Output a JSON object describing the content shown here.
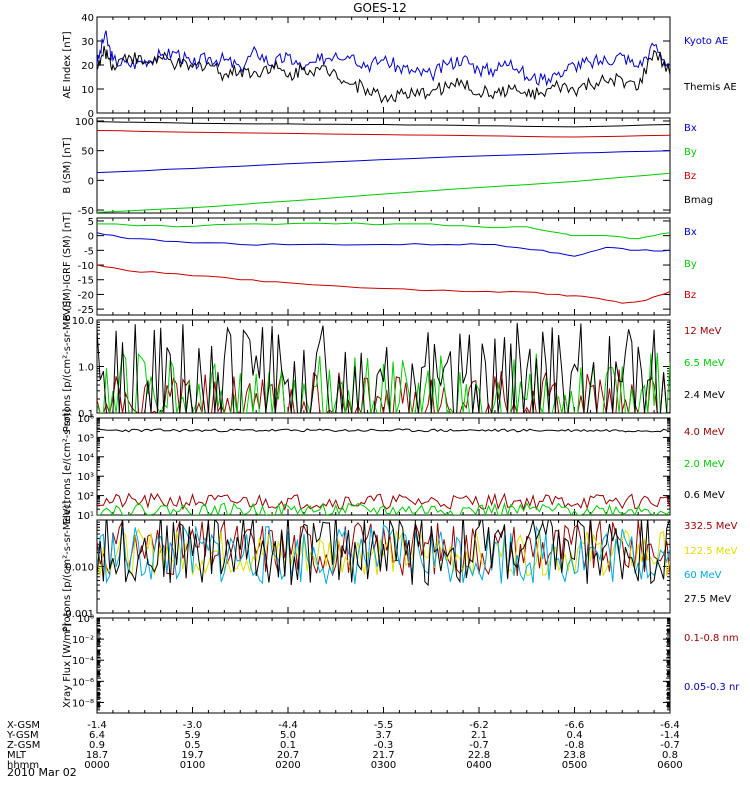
{
  "title": "GOES-12",
  "date_label": "2010 Mar 02",
  "colors": {
    "black": "#000000",
    "blue": "#0000cc",
    "red": "#cc0000",
    "green": "#00cc00",
    "darkred": "#990000",
    "cyan": "#00aadd",
    "yellow": "#dddd00",
    "navy": "#0000aa"
  },
  "x_axis": {
    "row_labels": [
      "X-GSM",
      "Y-GSM",
      "Z-GSM",
      "MLT",
      "hhmm"
    ],
    "ticks": [
      {
        "t": 0,
        "values": [
          "-1.4",
          "6.4",
          "0.9",
          "18.7",
          "0000"
        ]
      },
      {
        "t": 60,
        "values": [
          "-3.0",
          "5.9",
          "0.5",
          "19.7",
          "0100"
        ]
      },
      {
        "t": 120,
        "values": [
          "-4.4",
          "5.0",
          "0.1",
          "20.7",
          "0200"
        ]
      },
      {
        "t": 180,
        "values": [
          "-5.5",
          "3.7",
          "-0.3",
          "21.7",
          "0300"
        ]
      },
      {
        "t": 240,
        "values": [
          "-6.2",
          "2.1",
          "-0.7",
          "22.8",
          "0400"
        ]
      },
      {
        "t": 300,
        "values": [
          "-6.6",
          "0.4",
          "-0.8",
          "23.8",
          "0500"
        ]
      },
      {
        "t": 360,
        "values": [
          "-6.4",
          "-1.4",
          "-0.7",
          "0.8",
          "0600"
        ]
      }
    ]
  },
  "chart_data": [
    {
      "type": "line",
      "ylabel": "AE Index [nT]",
      "scale": "linear",
      "ylim": [
        0,
        40
      ],
      "yticks": [
        {
          "v": 0,
          "label": "0"
        },
        {
          "v": 10,
          "label": "10"
        },
        {
          "v": 20,
          "label": "20"
        },
        {
          "v": 30,
          "label": "30"
        },
        {
          "v": 40,
          "label": "40"
        }
      ],
      "series": [
        {
          "name": "Kyoto AE",
          "color": "blue",
          "x": [
            0,
            5,
            10,
            20,
            30,
            40,
            50,
            60,
            70,
            80,
            90,
            100,
            110,
            120,
            130,
            140,
            150,
            160,
            170,
            180,
            190,
            200,
            210,
            220,
            230,
            240,
            250,
            260,
            270,
            280,
            290,
            300,
            310,
            320,
            330,
            340,
            350,
            360
          ],
          "y": [
            20,
            33,
            22,
            20,
            22,
            24,
            25,
            20,
            23,
            22,
            19,
            26,
            20,
            24,
            18,
            22,
            25,
            24,
            20,
            22,
            19,
            17,
            16,
            20,
            23,
            18,
            18,
            22,
            15,
            14,
            17,
            20,
            21,
            22,
            24,
            19,
            28,
            20
          ]
        },
        {
          "name": "Themis AE",
          "color": "black",
          "x": [
            0,
            5,
            10,
            20,
            30,
            40,
            50,
            60,
            70,
            80,
            90,
            100,
            110,
            120,
            130,
            140,
            150,
            160,
            170,
            180,
            190,
            200,
            210,
            220,
            230,
            240,
            250,
            260,
            270,
            280,
            290,
            300,
            310,
            320,
            330,
            340,
            350,
            360
          ],
          "y": [
            18,
            26,
            20,
            24,
            21,
            23,
            20,
            19,
            21,
            16,
            18,
            17,
            20,
            15,
            19,
            18,
            17,
            12,
            10,
            6,
            8,
            7,
            9,
            11,
            12,
            8,
            9,
            10,
            7,
            8,
            11,
            9,
            12,
            13,
            14,
            10,
            26,
            16
          ]
        }
      ]
    },
    {
      "type": "line",
      "ylabel": "B (SM) [nT]",
      "scale": "linear",
      "ylim": [
        -55,
        105
      ],
      "yticks": [
        {
          "v": -50,
          "label": "-50"
        },
        {
          "v": 0,
          "label": "0"
        },
        {
          "v": 50,
          "label": "50"
        },
        {
          "v": 100,
          "label": "100"
        }
      ],
      "series": [
        {
          "name": "Bx",
          "color": "blue",
          "x": [
            0,
            60,
            120,
            180,
            240,
            300,
            360
          ],
          "y": [
            13,
            20,
            28,
            35,
            41,
            46,
            50
          ]
        },
        {
          "name": "By",
          "color": "green",
          "x": [
            0,
            60,
            120,
            180,
            240,
            300,
            360
          ],
          "y": [
            -54,
            -46,
            -35,
            -23,
            -12,
            -2,
            12
          ]
        },
        {
          "name": "Bz",
          "color": "red",
          "x": [
            0,
            60,
            120,
            180,
            240,
            300,
            360
          ],
          "y": [
            84,
            81,
            79,
            77,
            75,
            73,
            76
          ]
        },
        {
          "name": "Bmag",
          "color": "black",
          "x": [
            0,
            60,
            120,
            180,
            240,
            300,
            360
          ],
          "y": [
            99,
            96,
            95,
            94,
            92,
            90,
            94
          ]
        }
      ]
    },
    {
      "type": "line",
      "ylabel": "B (SM)-IGRF (SM) [nT]",
      "scale": "linear",
      "ylim": [
        -27,
        6
      ],
      "yticks": [
        {
          "v": -25,
          "label": "-25"
        },
        {
          "v": -20,
          "label": "-20"
        },
        {
          "v": -15,
          "label": "-15"
        },
        {
          "v": -10,
          "label": "-10"
        },
        {
          "v": -5,
          "label": "-5"
        },
        {
          "v": 0,
          "label": "0"
        },
        {
          "v": 5,
          "label": "5"
        }
      ],
      "series": [
        {
          "name": "Bx",
          "color": "blue",
          "x": [
            0,
            20,
            50,
            90,
            130,
            180,
            220,
            250,
            280,
            300,
            320,
            340,
            360
          ],
          "y": [
            1,
            -1,
            -2,
            -3,
            -3,
            -3,
            -3,
            -3,
            -5,
            -7,
            -4,
            -5,
            -5
          ]
        },
        {
          "name": "By",
          "color": "green",
          "x": [
            0,
            50,
            100,
            150,
            200,
            240,
            270,
            290,
            300,
            320,
            340,
            360
          ],
          "y": [
            4,
            3,
            4,
            4,
            4,
            3,
            3,
            1,
            0,
            0,
            -1,
            1
          ]
        },
        {
          "name": "Bz",
          "color": "red",
          "x": [
            0,
            20,
            50,
            90,
            120,
            180,
            230,
            260,
            290,
            310,
            330,
            345,
            360
          ],
          "y": [
            -10,
            -12,
            -13,
            -15,
            -16,
            -18,
            -19,
            -19,
            -20,
            -21,
            -23,
            -22,
            -19
          ]
        }
      ]
    },
    {
      "type": "line",
      "ylabel": "Protons [p/(cm²-s-sr-MeV)]",
      "scale": "log",
      "ylim": [
        0.1,
        10
      ],
      "yticks": [
        {
          "v": 0.1,
          "label": "0.1"
        },
        {
          "v": 1,
          "label": "1.0"
        },
        {
          "v": 10,
          "label": "10.0"
        }
      ],
      "series": [
        {
          "name": "12 MeV",
          "color": "darkred",
          "noise": {
            "base": 0.1,
            "amp": 1.0,
            "sparse": true,
            "seed": 11
          }
        },
        {
          "name": "6.5 MeV",
          "color": "green",
          "noise": {
            "base": 0.12,
            "amp": 2.2,
            "sparse": true,
            "seed": 12
          }
        },
        {
          "name": "2.4 MeV",
          "color": "black",
          "noise": {
            "base": 0.35,
            "amp": 3.5,
            "sparse": true,
            "seed": 13
          }
        }
      ]
    },
    {
      "type": "line",
      "ylabel": "Electrons [e/(cm²-s-sr)]",
      "scale": "log",
      "ylim": [
        10,
        1000000
      ],
      "yticks": [
        {
          "v": 10,
          "label": "10¹"
        },
        {
          "v": 100,
          "label": "10²"
        },
        {
          "v": 1000,
          "label": "10³"
        },
        {
          "v": 10000,
          "label": "10⁴"
        },
        {
          "v": 100000,
          "label": "10⁵"
        },
        {
          "v": 1000000,
          "label": "10⁶"
        }
      ],
      "series": [
        {
          "name": "4.0 MeV",
          "color": "darkred",
          "noise": {
            "base": 50,
            "amp": 0.8,
            "seed": 21
          }
        },
        {
          "name": "2.0 MeV",
          "color": "green",
          "noise": {
            "base": 18,
            "amp": 0.7,
            "seed": 22
          }
        },
        {
          "name": "0.6 MeV",
          "color": "black",
          "noise": {
            "base": 230000,
            "amp": 0.15,
            "seed": 23
          }
        }
      ]
    },
    {
      "type": "line",
      "ylabel": "Protons [p/(cm²-s-sr-MeV)]",
      "scale": "log",
      "ylim": [
        0.001,
        0.1
      ],
      "yticks": [
        {
          "v": 0.001,
          "label": "0.001"
        },
        {
          "v": 0.01,
          "label": "0.010"
        }
      ],
      "series": [
        {
          "name": "332.5 MeV",
          "color": "darkred",
          "noise": {
            "base": 0.025,
            "amp": 1.2,
            "seed": 31
          }
        },
        {
          "name": "122.5 MeV",
          "color": "yellow",
          "noise": {
            "base": 0.02,
            "amp": 1.0,
            "seed": 32
          }
        },
        {
          "name": "60 MeV",
          "color": "cyan",
          "noise": {
            "base": 0.018,
            "amp": 1.3,
            "seed": 33
          }
        },
        {
          "name": "27.5 MeV",
          "color": "black",
          "noise": {
            "base": 0.025,
            "amp": 1.6,
            "seed": 34
          }
        }
      ]
    },
    {
      "type": "line",
      "ylabel": "Xray Flux [W/m²]",
      "scale": "log",
      "ylim": [
        1e-09,
        1
      ],
      "yticks": [
        {
          "v": 1e-08,
          "label": "10⁻⁸"
        },
        {
          "v": 1e-06,
          "label": "10⁻⁶"
        },
        {
          "v": 0.0001,
          "label": "10⁻⁴"
        },
        {
          "v": 0.01,
          "label": "10⁻²"
        },
        {
          "v": 1,
          "label": "10⁰"
        }
      ],
      "series": [
        {
          "name": "0.1-0.8 nm",
          "color": "darkred"
        },
        {
          "name": "0.05-0.3 nr",
          "color": "navy"
        }
      ]
    }
  ]
}
